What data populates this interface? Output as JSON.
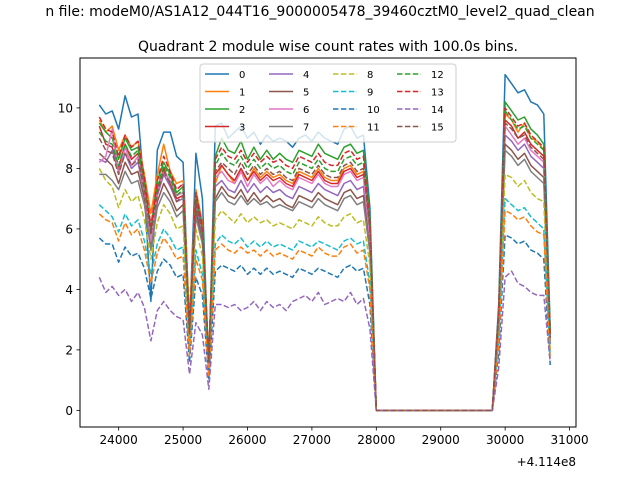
{
  "chart_data": {
    "type": "line",
    "suptitle": "n file: modeM0/AS1A12_044T16_9000005478_39460cztM0_level2_quad_clean",
    "title": "Quadrant 2 module wise count rates with 100.0s bins.",
    "xlabel": "",
    "ylabel": "",
    "x_offset_label": "+4.114e8",
    "xlim": [
      23400,
      31100
    ],
    "ylim": [
      -0.55,
      11.65
    ],
    "x_ticks": [
      24000,
      25000,
      26000,
      27000,
      28000,
      29000,
      30000,
      31000
    ],
    "y_ticks": [
      0,
      2,
      4,
      6,
      8,
      10
    ],
    "grid": false,
    "legend_position": "top-center",
    "legend_columns": 4,
    "x": [
      23700,
      23800,
      23900,
      24000,
      24100,
      24200,
      24300,
      24400,
      24500,
      24600,
      24700,
      24800,
      24900,
      25000,
      25100,
      25200,
      25300,
      25400,
      25500,
      25600,
      25700,
      25800,
      25900,
      26000,
      26100,
      26200,
      26300,
      26400,
      26500,
      26600,
      26700,
      26800,
      26900,
      27000,
      27100,
      27200,
      27300,
      27400,
      27500,
      27600,
      27700,
      27800,
      27900,
      28000,
      29800,
      29900,
      30000,
      30100,
      30200,
      30300,
      30400,
      30500,
      30600,
      30700
    ],
    "series": [
      {
        "name": "0",
        "color": "#1f77b4",
        "dash": "solid",
        "values": [
          10.1,
          9.8,
          9.9,
          9.3,
          10.4,
          9.7,
          9.8,
          7.2,
          3.6,
          8.6,
          9.2,
          9.2,
          8.4,
          8.2,
          2.7,
          8.5,
          7.0,
          1.3,
          9.4,
          9.5,
          9.0,
          9.2,
          9.4,
          9.0,
          9.2,
          8.8,
          9.1,
          8.9,
          9.0,
          8.9,
          8.7,
          9.0,
          9.1,
          8.9,
          9.2,
          9.0,
          8.9,
          8.8,
          9.3,
          9.4,
          9.0,
          9.1,
          6.7,
          0.0,
          0.0,
          3.5,
          11.1,
          10.8,
          10.5,
          10.6,
          10.2,
          10.1,
          9.8,
          2.7
        ]
      },
      {
        "name": "1",
        "color": "#ff7f0e",
        "dash": "solid",
        "values": [
          9.6,
          9.2,
          9.4,
          8.6,
          9.1,
          8.7,
          8.9,
          7.8,
          6.5,
          7.8,
          8.8,
          7.9,
          7.5,
          7.6,
          3.0,
          7.3,
          6.2,
          1.7,
          7.5,
          8.1,
          7.8,
          7.5,
          7.9,
          7.6,
          8.0,
          7.7,
          7.9,
          7.7,
          7.8,
          7.6,
          7.5,
          7.9,
          7.8,
          7.7,
          8.0,
          7.7,
          7.6,
          7.6,
          8.0,
          8.1,
          7.8,
          7.9,
          5.9,
          0.0,
          0.0,
          3.2,
          9.8,
          9.6,
          9.2,
          9.5,
          9.0,
          8.9,
          8.6,
          2.5
        ]
      },
      {
        "name": "2",
        "color": "#2ca02c",
        "dash": "solid",
        "values": [
          9.5,
          9.2,
          9.0,
          8.3,
          9.0,
          8.6,
          8.7,
          7.6,
          6.0,
          7.6,
          8.2,
          7.8,
          7.2,
          7.4,
          2.6,
          7.1,
          6.0,
          1.6,
          8.4,
          9.0,
          8.6,
          8.5,
          8.9,
          8.3,
          8.7,
          8.3,
          8.6,
          8.3,
          8.5,
          8.3,
          8.2,
          8.6,
          8.5,
          8.4,
          8.8,
          8.5,
          8.4,
          8.3,
          8.7,
          8.8,
          8.5,
          8.6,
          6.4,
          0.0,
          0.0,
          3.3,
          10.2,
          9.9,
          9.6,
          9.7,
          9.3,
          9.1,
          8.8,
          2.6
        ]
      },
      {
        "name": "3",
        "color": "#d62728",
        "dash": "solid",
        "values": [
          9.4,
          8.8,
          8.7,
          8.0,
          8.8,
          8.3,
          8.5,
          7.4,
          5.9,
          7.3,
          8.0,
          7.5,
          7.0,
          7.1,
          2.5,
          6.9,
          5.9,
          1.5,
          7.8,
          8.1,
          7.8,
          7.6,
          8.0,
          7.6,
          7.9,
          7.6,
          7.8,
          7.6,
          7.7,
          7.5,
          7.4,
          7.8,
          7.7,
          7.6,
          7.9,
          7.6,
          7.5,
          7.5,
          7.9,
          8.0,
          7.7,
          7.8,
          5.8,
          0.0,
          0.0,
          3.1,
          9.6,
          9.4,
          9.0,
          9.2,
          8.8,
          8.6,
          8.4,
          2.4
        ]
      },
      {
        "name": "4",
        "color": "#9467bd",
        "dash": "solid",
        "values": [
          8.3,
          8.2,
          8.6,
          7.9,
          8.5,
          8.0,
          8.2,
          7.2,
          5.7,
          7.1,
          7.8,
          7.4,
          6.9,
          7.0,
          2.5,
          6.8,
          5.8,
          1.5,
          7.4,
          7.6,
          7.3,
          7.2,
          7.6,
          7.2,
          7.5,
          7.2,
          7.4,
          7.2,
          7.3,
          7.1,
          7.0,
          7.4,
          7.3,
          7.2,
          7.5,
          7.3,
          7.2,
          7.1,
          7.5,
          7.6,
          7.3,
          7.4,
          5.5,
          0.0,
          0.0,
          3.0,
          9.1,
          8.9,
          8.6,
          8.8,
          8.4,
          8.2,
          8.0,
          2.3
        ]
      },
      {
        "name": "5",
        "color": "#8c564b",
        "dash": "solid",
        "values": [
          8.5,
          8.3,
          8.1,
          7.5,
          8.2,
          7.8,
          7.9,
          7.0,
          5.5,
          6.9,
          7.5,
          7.1,
          6.6,
          6.8,
          2.4,
          6.6,
          5.6,
          1.4,
          7.0,
          7.4,
          7.1,
          7.0,
          7.3,
          6.9,
          7.2,
          6.9,
          7.1,
          6.9,
          7.0,
          6.8,
          6.7,
          7.1,
          7.0,
          6.9,
          7.2,
          7.0,
          6.9,
          6.8,
          7.2,
          7.3,
          7.0,
          7.1,
          5.3,
          0.0,
          0.0,
          2.9,
          8.8,
          8.6,
          8.3,
          8.5,
          8.1,
          7.9,
          7.7,
          2.2
        ]
      },
      {
        "name": "6",
        "color": "#e377c2",
        "dash": "solid",
        "values": [
          8.2,
          8.4,
          9.3,
          7.8,
          8.7,
          8.1,
          8.4,
          7.3,
          5.6,
          7.2,
          7.9,
          7.6,
          7.1,
          7.2,
          2.6,
          7.0,
          5.9,
          1.5,
          7.7,
          7.9,
          7.6,
          7.5,
          7.9,
          7.4,
          7.8,
          7.5,
          7.7,
          7.4,
          7.6,
          7.4,
          7.3,
          7.7,
          7.6,
          7.5,
          7.8,
          7.5,
          7.4,
          7.4,
          7.8,
          7.9,
          7.6,
          7.7,
          5.7,
          0.0,
          0.0,
          3.1,
          9.4,
          9.1,
          8.8,
          9.0,
          8.6,
          8.4,
          8.2,
          2.4
        ]
      },
      {
        "name": "7",
        "color": "#7f7f7f",
        "dash": "solid",
        "values": [
          7.8,
          7.8,
          7.6,
          7.3,
          7.9,
          7.5,
          7.6,
          6.8,
          5.3,
          6.7,
          7.2,
          6.9,
          6.4,
          6.6,
          2.3,
          6.4,
          5.5,
          1.4,
          6.9,
          7.2,
          6.9,
          6.8,
          7.1,
          6.8,
          7.0,
          6.8,
          6.9,
          6.7,
          6.8,
          6.7,
          6.6,
          6.9,
          6.8,
          6.7,
          7.0,
          6.8,
          6.7,
          6.6,
          7.0,
          7.1,
          6.8,
          6.9,
          5.2,
          0.0,
          0.0,
          2.8,
          8.6,
          8.4,
          8.1,
          8.3,
          7.9,
          7.7,
          7.5,
          2.2
        ]
      },
      {
        "name": "8",
        "color": "#bcbd22",
        "dash": "dashed",
        "values": [
          8.0,
          7.6,
          7.4,
          6.7,
          7.3,
          6.9,
          7.1,
          6.3,
          5.0,
          6.2,
          6.8,
          6.5,
          6.0,
          6.1,
          2.2,
          6.0,
          5.1,
          1.3,
          6.3,
          6.6,
          6.4,
          6.2,
          6.5,
          6.2,
          6.4,
          6.2,
          6.3,
          6.1,
          6.2,
          6.1,
          6.0,
          6.3,
          6.2,
          6.1,
          6.4,
          6.2,
          6.1,
          6.1,
          6.4,
          6.5,
          6.2,
          6.3,
          4.8,
          0.0,
          0.0,
          2.6,
          7.8,
          7.7,
          7.4,
          7.6,
          7.2,
          7.0,
          6.9,
          2.0
        ]
      },
      {
        "name": "9",
        "color": "#17becf",
        "dash": "dashed",
        "values": [
          6.8,
          6.6,
          6.4,
          5.9,
          6.5,
          6.1,
          6.3,
          5.6,
          4.5,
          5.5,
          6.0,
          5.7,
          5.3,
          5.4,
          1.9,
          5.3,
          4.5,
          1.2,
          5.5,
          5.8,
          5.6,
          5.5,
          5.7,
          5.4,
          5.6,
          5.4,
          5.6,
          5.4,
          5.5,
          5.4,
          5.3,
          5.6,
          5.5,
          5.4,
          5.6,
          5.5,
          5.4,
          5.3,
          5.6,
          5.7,
          5.5,
          5.6,
          4.2,
          0.0,
          0.0,
          2.3,
          7.0,
          6.8,
          6.6,
          6.7,
          6.4,
          6.2,
          6.0,
          1.8
        ]
      },
      {
        "name": "10",
        "color": "#1f77b4",
        "dash": "dashed",
        "values": [
          5.7,
          5.5,
          5.5,
          4.9,
          5.4,
          5.1,
          5.2,
          4.7,
          3.7,
          4.6,
          5.0,
          4.8,
          4.4,
          4.5,
          1.6,
          4.4,
          3.8,
          1.0,
          4.6,
          4.8,
          4.7,
          4.6,
          4.8,
          4.5,
          4.7,
          4.5,
          4.7,
          4.5,
          4.6,
          4.5,
          4.4,
          4.7,
          4.6,
          4.5,
          4.7,
          4.6,
          4.5,
          4.4,
          4.7,
          4.8,
          4.6,
          4.7,
          3.5,
          0.0,
          0.0,
          1.9,
          5.8,
          5.7,
          5.5,
          5.6,
          5.3,
          5.2,
          5.0,
          1.5
        ]
      },
      {
        "name": "11",
        "color": "#ff7f0e",
        "dash": "dashed",
        "values": [
          6.5,
          6.3,
          6.2,
          5.6,
          6.2,
          5.8,
          6.0,
          5.3,
          4.2,
          5.2,
          5.7,
          5.4,
          5.0,
          5.1,
          1.8,
          5.0,
          4.3,
          1.1,
          5.3,
          5.5,
          5.3,
          5.2,
          5.4,
          5.2,
          5.3,
          5.1,
          5.3,
          5.1,
          5.2,
          5.1,
          5.0,
          5.3,
          5.2,
          5.1,
          5.4,
          5.2,
          5.1,
          5.1,
          5.4,
          5.5,
          5.2,
          5.3,
          4.0,
          0.0,
          0.0,
          2.2,
          6.6,
          6.5,
          6.3,
          6.4,
          6.1,
          5.9,
          5.8,
          1.7
        ]
      },
      {
        "name": "12",
        "color": "#2ca02c",
        "dash": "dashed",
        "values": [
          9.2,
          8.9,
          8.8,
          8.1,
          8.8,
          8.4,
          8.6,
          7.5,
          5.9,
          7.4,
          8.1,
          7.7,
          7.1,
          7.3,
          2.6,
          7.0,
          6.0,
          1.6,
          8.1,
          8.5,
          8.2,
          8.1,
          8.4,
          8.0,
          8.3,
          8.0,
          8.2,
          8.0,
          8.1,
          7.9,
          7.8,
          8.2,
          8.1,
          8.0,
          8.3,
          8.0,
          7.9,
          7.9,
          8.3,
          8.4,
          8.1,
          8.2,
          6.1,
          0.0,
          0.0,
          3.2,
          9.9,
          9.6,
          9.3,
          9.4,
          9.0,
          8.8,
          8.6,
          2.5
        ]
      },
      {
        "name": "13",
        "color": "#d62728",
        "dash": "dashed",
        "values": [
          9.7,
          9.3,
          9.2,
          8.4,
          9.1,
          8.7,
          8.9,
          7.7,
          6.1,
          7.6,
          8.4,
          7.9,
          7.3,
          7.5,
          2.7,
          7.2,
          6.1,
          1.7,
          8.3,
          8.7,
          8.4,
          8.3,
          8.6,
          8.2,
          8.5,
          8.2,
          8.4,
          8.2,
          8.3,
          8.1,
          8.0,
          8.4,
          8.3,
          8.2,
          8.5,
          8.2,
          8.1,
          8.1,
          8.5,
          8.6,
          8.3,
          8.4,
          6.2,
          0.0,
          0.0,
          3.3,
          10.0,
          9.7,
          9.4,
          9.5,
          9.1,
          8.9,
          8.7,
          2.5
        ]
      },
      {
        "name": "14",
        "color": "#9467bd",
        "dash": "dashed",
        "values": [
          4.4,
          3.9,
          4.1,
          3.8,
          4.0,
          3.6,
          3.9,
          3.4,
          2.3,
          3.3,
          3.6,
          3.3,
          3.1,
          3.0,
          1.2,
          2.9,
          2.5,
          0.7,
          3.5,
          3.5,
          3.4,
          3.5,
          3.3,
          3.4,
          3.6,
          3.3,
          3.6,
          3.4,
          3.5,
          3.3,
          3.6,
          3.7,
          3.8,
          3.6,
          3.9,
          3.5,
          3.6,
          3.7,
          3.6,
          3.9,
          3.5,
          3.7,
          2.7,
          0.0,
          0.0,
          1.4,
          4.4,
          4.6,
          4.2,
          4.1,
          3.9,
          3.8,
          3.8,
          1.6
        ]
      },
      {
        "name": "15",
        "color": "#8c564b",
        "dash": "dashed",
        "values": [
          9.0,
          8.6,
          8.5,
          7.8,
          8.5,
          8.1,
          8.3,
          7.3,
          5.8,
          7.2,
          7.9,
          7.5,
          6.9,
          7.1,
          2.5,
          6.9,
          5.9,
          1.6,
          7.9,
          8.2,
          8.0,
          7.8,
          8.2,
          7.8,
          8.1,
          7.8,
          8.0,
          7.8,
          7.9,
          7.7,
          7.6,
          8.0,
          7.9,
          7.8,
          8.1,
          7.8,
          7.7,
          7.7,
          8.1,
          8.2,
          7.9,
          8.0,
          6.0,
          0.0,
          0.0,
          3.1,
          9.5,
          9.3,
          9.0,
          9.1,
          8.7,
          8.5,
          8.3,
          2.4
        ]
      }
    ]
  }
}
